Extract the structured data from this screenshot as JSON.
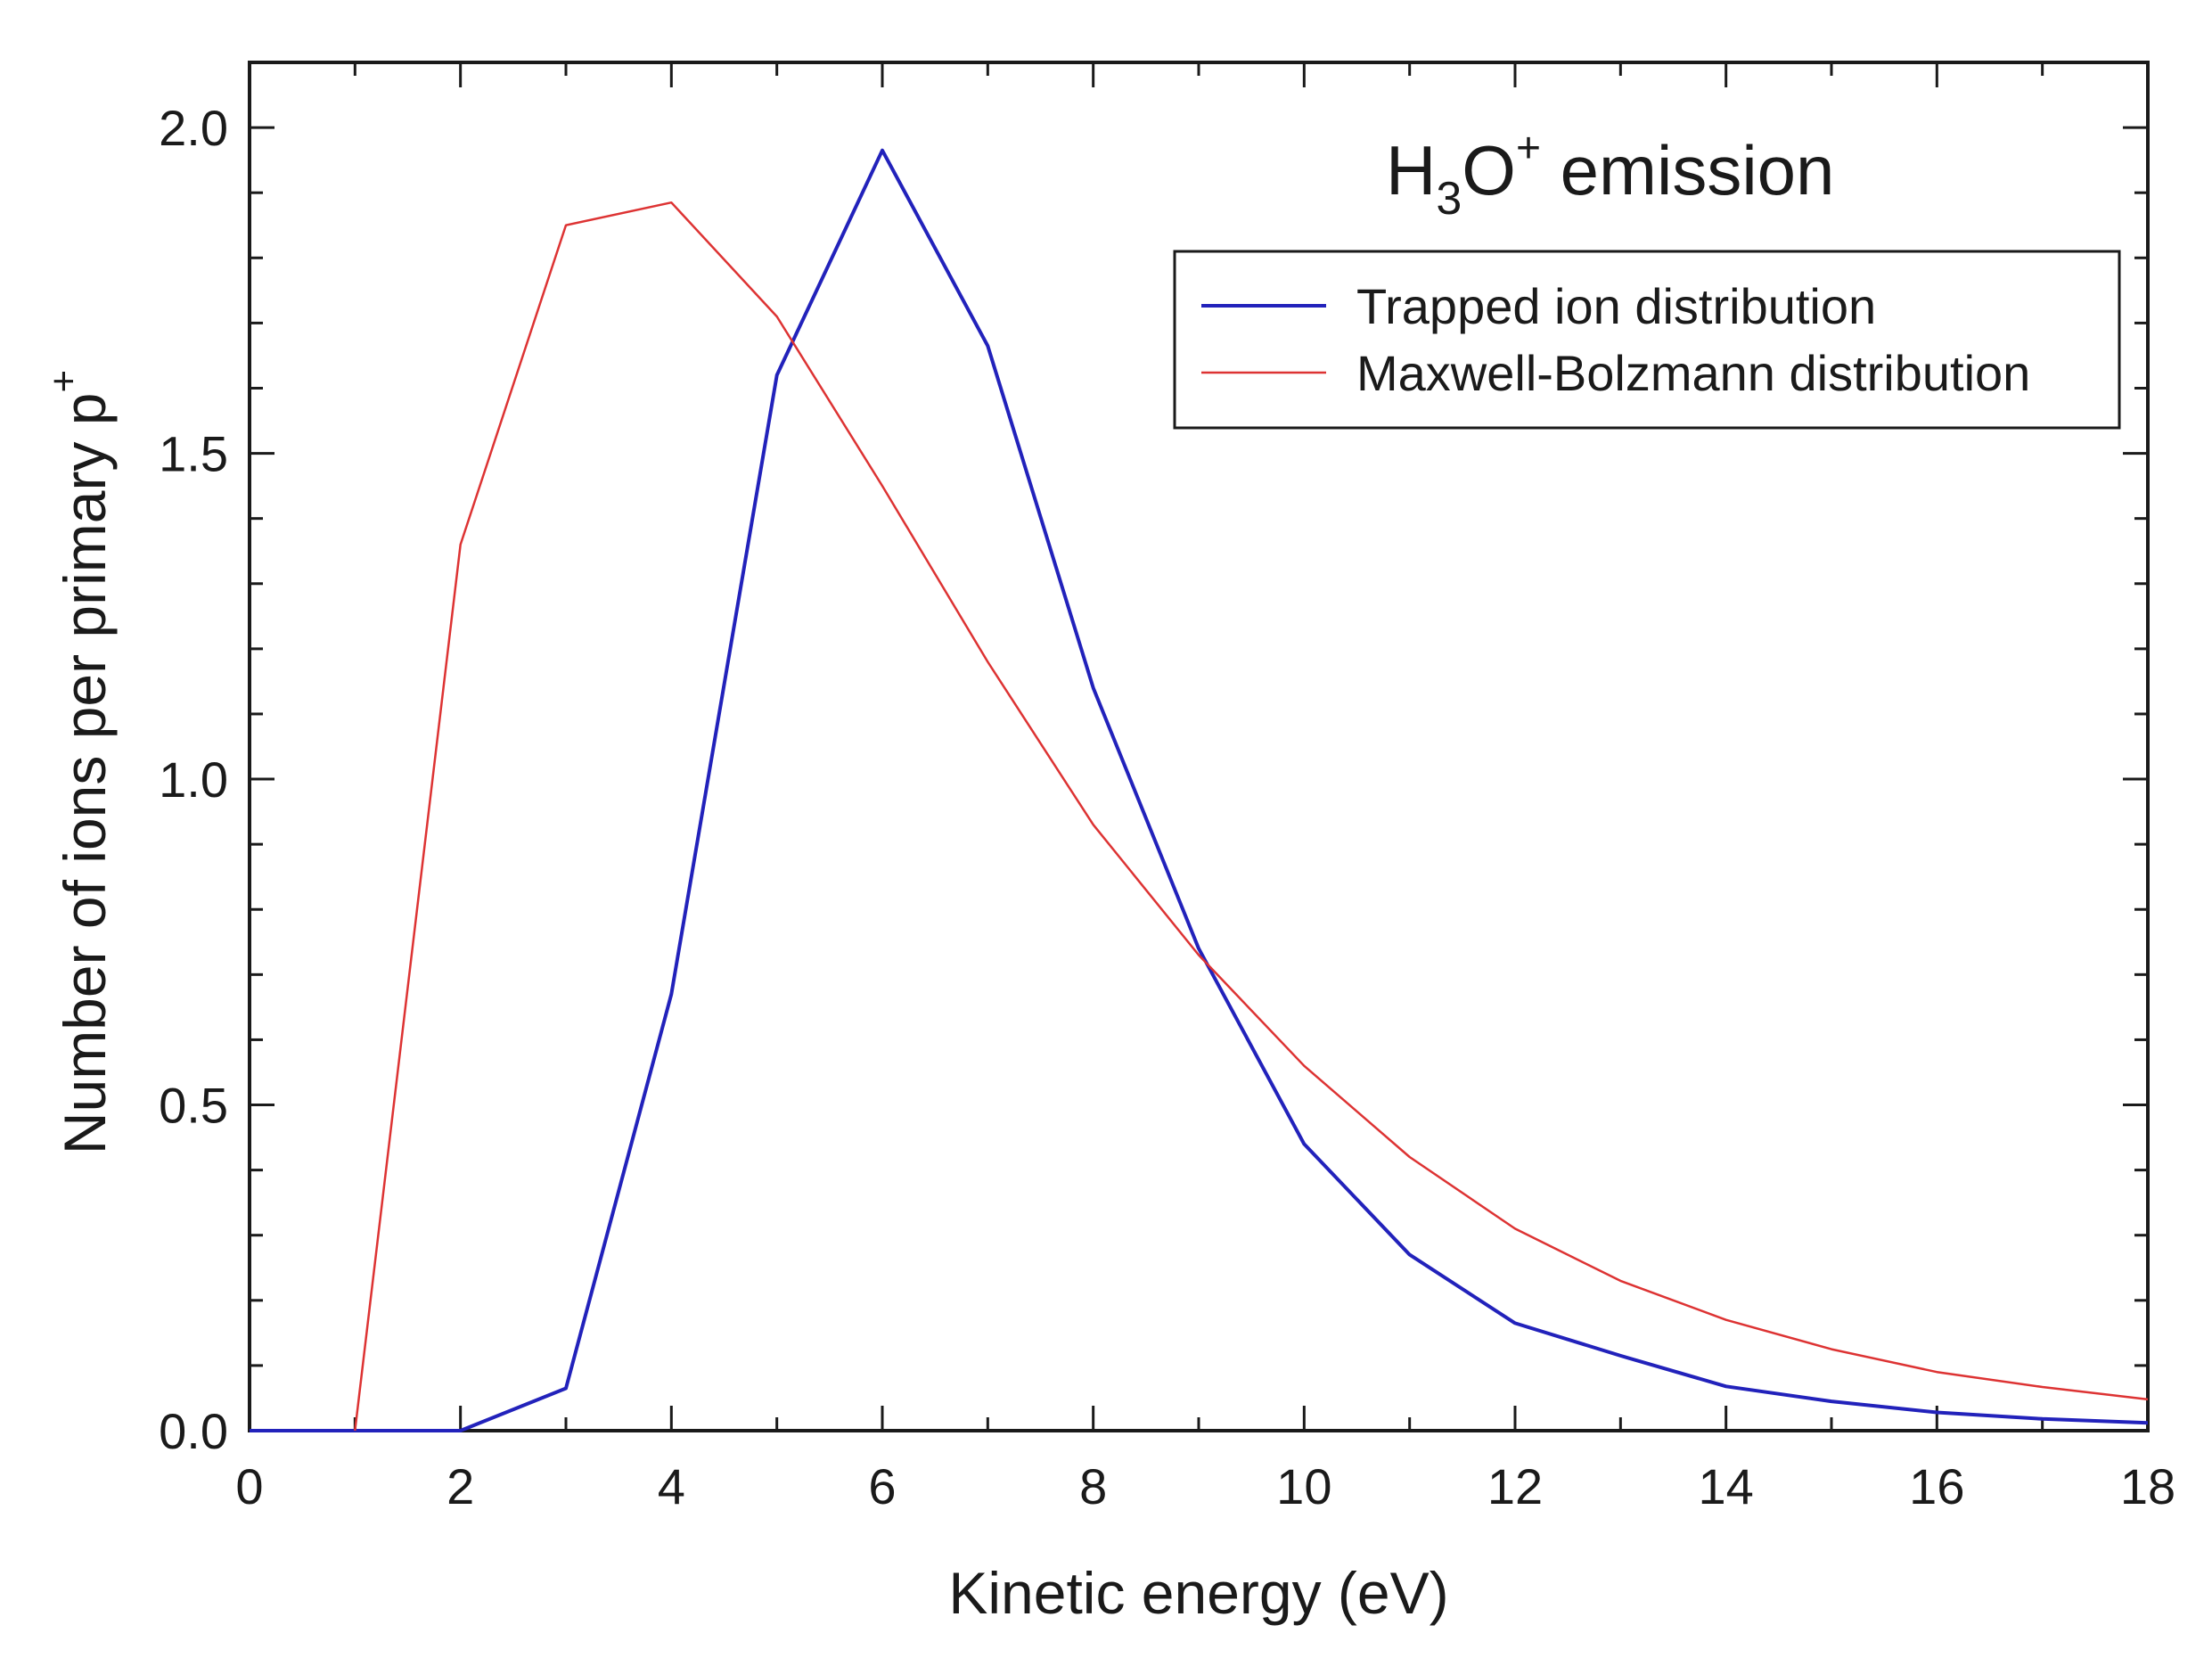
{
  "chart_data": {
    "type": "line",
    "title": "",
    "annotation": {
      "main": "H",
      "sub": "3",
      "mid": "O",
      "sup": "+",
      "tail": " emission"
    },
    "xlabel": "Kinetic energy (eV)",
    "ylabel": {
      "main": "Number of ions per primary p",
      "sup": "+"
    },
    "xlim": [
      0,
      18
    ],
    "ylim": [
      0,
      2.1
    ],
    "xticks": [
      "0",
      "2",
      "4",
      "6",
      "8",
      "10",
      "12",
      "14",
      "16",
      "18"
    ],
    "yticks": [
      "0.0",
      "0.5",
      "1.0",
      "1.5",
      "2.0"
    ],
    "grid": false,
    "legend_position": "top-right",
    "series": [
      {
        "name": "Trapped ion distribution",
        "color": "#2222bb",
        "x": [
          0,
          1,
          2,
          3,
          4,
          5,
          6,
          7,
          8,
          9,
          10,
          11,
          12,
          13,
          14,
          15,
          16,
          17,
          18
        ],
        "y": [
          0,
          0,
          0,
          0.065,
          0.67,
          1.62,
          1.965,
          1.665,
          1.14,
          0.74,
          0.44,
          0.27,
          0.165,
          0.115,
          0.068,
          0.045,
          0.028,
          0.018,
          0.012
        ]
      },
      {
        "name": "Maxwell-Bolzmann distribution",
        "color": "#dd3333",
        "x": [
          1,
          2,
          3,
          4,
          5,
          6,
          7,
          8,
          9,
          10,
          11,
          12,
          13,
          14,
          15,
          16,
          17,
          18
        ],
        "y": [
          0,
          1.36,
          1.85,
          1.885,
          1.71,
          1.45,
          1.18,
          0.93,
          0.73,
          0.56,
          0.42,
          0.31,
          0.23,
          0.17,
          0.125,
          0.09,
          0.067,
          0.048
        ]
      }
    ]
  }
}
